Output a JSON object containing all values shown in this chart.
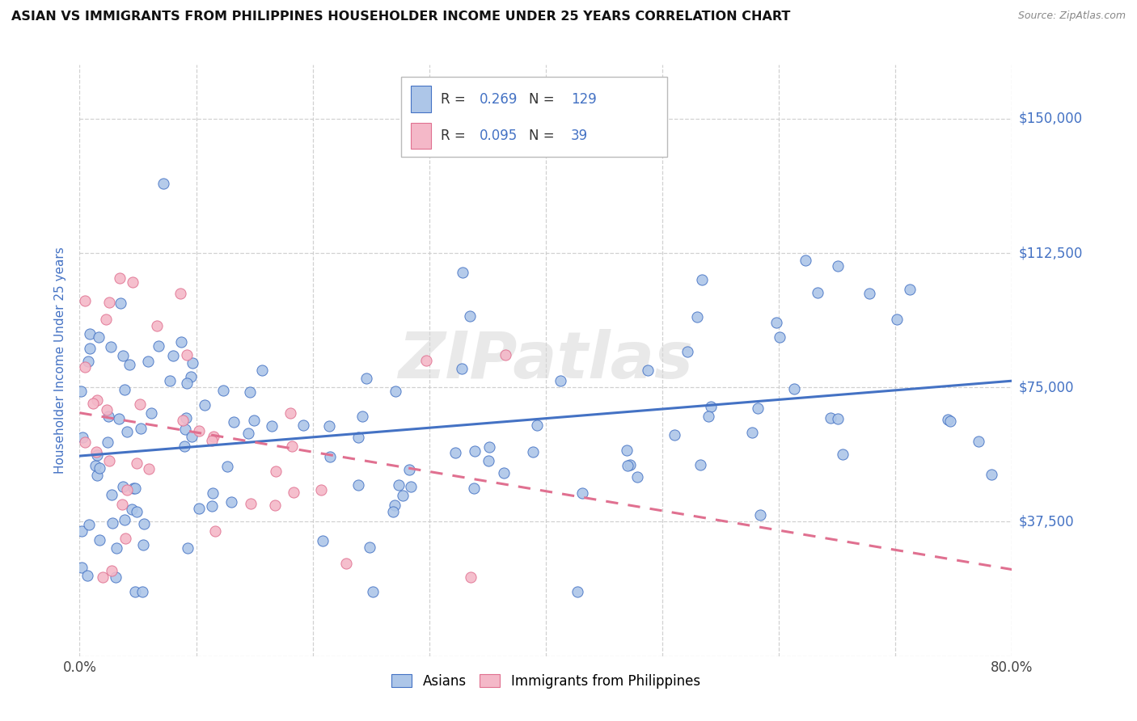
{
  "title": "ASIAN VS IMMIGRANTS FROM PHILIPPINES HOUSEHOLDER INCOME UNDER 25 YEARS CORRELATION CHART",
  "source": "Source: ZipAtlas.com",
  "ylabel": "Householder Income Under 25 years",
  "x_min": 0.0,
  "x_max": 0.8,
  "y_min": 0,
  "y_max": 165000,
  "legend_asian_R": "0.269",
  "legend_asian_N": "129",
  "legend_phil_R": "0.095",
  "legend_phil_N": "39",
  "color_asian_fill": "#adc6e8",
  "color_asian_edge": "#4472c4",
  "color_phil_fill": "#f4b8c8",
  "color_phil_edge": "#e07090",
  "color_trend_asian": "#4472c4",
  "color_trend_phil": "#e07090",
  "color_ylabel": "#4472c4",
  "color_right_labels": "#4472c4",
  "color_legend_text_black": "#333333",
  "color_legend_text_blue": "#4472c4",
  "watermark": "ZIPatlas",
  "background_color": "#ffffff",
  "grid_color": "#cccccc",
  "asian_seed": 12,
  "phil_seed": 7,
  "asian_n": 129,
  "phil_n": 39,
  "y_ticks": [
    0,
    37500,
    75000,
    112500,
    150000
  ],
  "right_y_labels": {
    "37500": "$37,500",
    "75000": "$75,000",
    "112500": "$112,500",
    "150000": "$150,000"
  }
}
